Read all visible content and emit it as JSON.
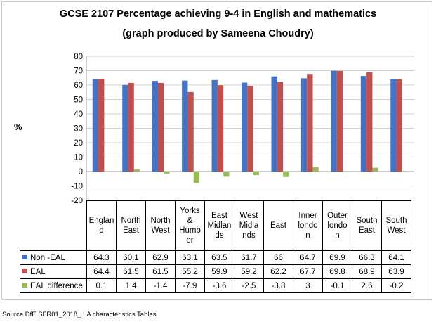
{
  "title_line1": "GCSE 2107 Percentage achieving 9-4 in English and mathematics",
  "title_line2": "(graph produced by Sameena Choudry)",
  "source": "Source DfE SFR01_2018_ LA characteristics Tables",
  "chart_data": {
    "type": "bar",
    "title": "GCSE 2107 Percentage achieving 9-4 in English and mathematics",
    "subtitle": "(graph produced by Sameena Choudry)",
    "ylabel": "%",
    "xlabel": "",
    "ylim": [
      -20,
      80
    ],
    "yticks": [
      "80",
      "70",
      "60",
      "50",
      "40",
      "30",
      "20",
      "10",
      "0",
      "-10",
      "-20"
    ],
    "grid": true,
    "categories": [
      "England",
      "North East",
      "North West",
      "Yorks & Humber",
      "East Midlands",
      "West Midlands",
      "East",
      "Inner london",
      "Outer london",
      "South East",
      "South West"
    ],
    "series": [
      {
        "name": "Non -EAL",
        "color": "#4472c4",
        "values": [
          64.3,
          60.1,
          62.9,
          63.1,
          63.5,
          61.7,
          66,
          64.7,
          69.9,
          66.3,
          64.1
        ]
      },
      {
        "name": "EAL",
        "color": "#c0504d",
        "values": [
          64.4,
          61.5,
          61.5,
          55.2,
          59.9,
          59.2,
          62.2,
          67.7,
          69.8,
          68.9,
          63.9
        ]
      },
      {
        "name": "EAL difference",
        "color": "#9bbb59",
        "values": [
          0.1,
          1.4,
          -1.4,
          -7.9,
          -3.6,
          -2.5,
          -3.8,
          3,
          -0.1,
          2.6,
          -0.2
        ]
      }
    ]
  },
  "table": {
    "category_lines": [
      [
        "Englan",
        "d"
      ],
      [
        "North",
        "East"
      ],
      [
        "North",
        "West"
      ],
      [
        "Yorks",
        "&",
        "Humb",
        "er"
      ],
      [
        "East",
        "Midlan",
        "ds"
      ],
      [
        "West",
        "Midla",
        "nds"
      ],
      [
        "East"
      ],
      [
        "Inner",
        "londo",
        "n"
      ],
      [
        "Outer",
        "londo",
        "n"
      ],
      [
        "South",
        "East"
      ],
      [
        "South",
        "West"
      ]
    ],
    "rows": [
      {
        "label": "Non -EAL",
        "color": "#4472c4",
        "values": [
          "64.3",
          "60.1",
          "62.9",
          "63.1",
          "63.5",
          "61.7",
          "66",
          "64.7",
          "69.9",
          "66.3",
          "64.1"
        ]
      },
      {
        "label": "EAL",
        "color": "#c0504d",
        "values": [
          "64.4",
          "61.5",
          "61.5",
          "55.2",
          "59.9",
          "59.2",
          "62.2",
          "67.7",
          "69.8",
          "68.9",
          "63.9"
        ]
      },
      {
        "label": "EAL difference",
        "color": "#9bbb59",
        "values": [
          "0.1",
          "1.4",
          "-1.4",
          "-7.9",
          "-3.6",
          "-2.5",
          "-3.8",
          "3",
          "-0.1",
          "2.6",
          "-0.2"
        ]
      }
    ]
  }
}
